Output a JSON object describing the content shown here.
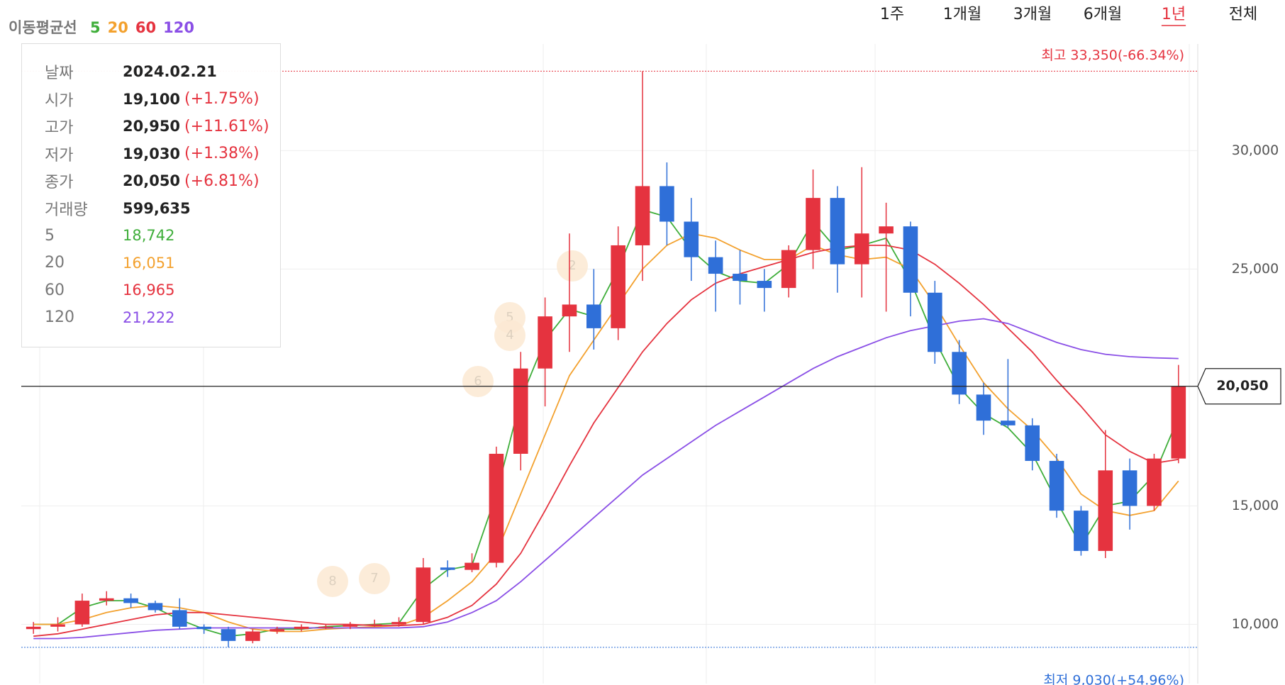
{
  "chart_data": {
    "type": "candlestick",
    "legend_title": "이동평균선",
    "periods": [
      "1주",
      "1개월",
      "3개월",
      "6개월",
      "1년",
      "전체"
    ],
    "selected_period": "1년",
    "colors": {
      "up": "#e5333f",
      "down": "#2f6fd8"
    },
    "ylim": [
      7500,
      34500
    ],
    "yticks": [
      {
        "value": 10000,
        "label": "10,000"
      },
      {
        "value": 15000,
        "label": "15,000"
      },
      {
        "value": 25000,
        "label": "25,000"
      },
      {
        "value": 30000,
        "label": "30,000"
      }
    ],
    "grid": true,
    "open": [
      9800,
      9900,
      10000,
      11000,
      11100,
      10900,
      10600,
      9900,
      9800,
      9300,
      9700,
      9800,
      9900,
      9900,
      10000,
      10000,
      10100,
      12400,
      12300,
      12600,
      17200,
      20800,
      23000,
      23500,
      22500,
      26000,
      28500,
      27000,
      25500,
      24800,
      24500,
      24200,
      25800,
      28000,
      25200,
      26500,
      26800,
      24000,
      21500,
      19700,
      18600,
      18400,
      16900,
      14800,
      13100,
      16500,
      15000,
      17000
    ],
    "high": [
      10100,
      10300,
      11300,
      11400,
      11300,
      11000,
      11100,
      10000,
      9900,
      9800,
      9900,
      10000,
      10000,
      10100,
      10200,
      10300,
      12800,
      12700,
      13000,
      17500,
      21500,
      23800,
      26500,
      25000,
      26800,
      33350,
      29500,
      28000,
      26200,
      25800,
      25000,
      26000,
      29200,
      28500,
      29300,
      27800,
      27000,
      24500,
      22000,
      20200,
      21200,
      18700,
      17200,
      15000,
      18200,
      17000,
      17200,
      20950
    ],
    "low": [
      9600,
      9700,
      9900,
      10800,
      10700,
      10500,
      9800,
      9600,
      9030,
      9200,
      9600,
      9700,
      9800,
      9800,
      9900,
      9900,
      10000,
      12000,
      12200,
      12400,
      16500,
      19200,
      21500,
      21600,
      22000,
      24500,
      26000,
      24500,
      23200,
      23500,
      23200,
      23800,
      25000,
      24000,
      23800,
      23200,
      23000,
      21000,
      19300,
      18000,
      18300,
      16500,
      14500,
      12900,
      12800,
      14000,
      14800,
      16800
    ],
    "close": [
      9900,
      10000,
      11000,
      11100,
      10900,
      10600,
      9900,
      9800,
      9300,
      9700,
      9800,
      9900,
      9900,
      10000,
      10000,
      10100,
      12400,
      12300,
      12600,
      17200,
      20800,
      23000,
      23500,
      22500,
      26000,
      28500,
      27000,
      25500,
      24800,
      24500,
      24200,
      25800,
      28000,
      25200,
      26500,
      26800,
      24000,
      21500,
      19700,
      18600,
      18400,
      16900,
      14800,
      13100,
      16500,
      15000,
      17000,
      20050
    ],
    "series": [
      {
        "name": "5",
        "color": "#3fae3a",
        "values": [
          10000,
          10000,
          10700,
          11000,
          11000,
          10700,
          10200,
          9800,
          9500,
          9600,
          9800,
          9800,
          9900,
          9950,
          10000,
          10050,
          11500,
          12300,
          12500,
          15500,
          19500,
          22000,
          23300,
          23000,
          25000,
          27500,
          27200,
          25800,
          24900,
          24500,
          24400,
          25200,
          27000,
          25800,
          26000,
          26300,
          24500,
          22000,
          20000,
          18900,
          18300,
          17200,
          15200,
          13300,
          15000,
          15200,
          16300,
          18742
        ]
      },
      {
        "name": "20",
        "color": "#f3a12e",
        "values": [
          10000,
          10000,
          10200,
          10500,
          10700,
          10800,
          10700,
          10500,
          10100,
          9800,
          9700,
          9700,
          9800,
          9850,
          9900,
          9950,
          10300,
          11000,
          11800,
          13000,
          15500,
          18000,
          20500,
          22000,
          23500,
          25000,
          26000,
          26500,
          26300,
          25800,
          25400,
          25400,
          26000,
          25600,
          25400,
          25500,
          25000,
          23500,
          21800,
          20200,
          19100,
          18200,
          17000,
          15500,
          14800,
          14600,
          14800,
          16051
        ]
      },
      {
        "name": "60",
        "color": "#e5333f",
        "values": [
          9500,
          9600,
          9800,
          10000,
          10200,
          10400,
          10500,
          10500,
          10400,
          10300,
          10200,
          10100,
          10000,
          10000,
          9950,
          9950,
          10000,
          10300,
          10800,
          11700,
          13000,
          14800,
          16700,
          18500,
          20000,
          21500,
          22700,
          23700,
          24400,
          24800,
          25100,
          25400,
          25700,
          25900,
          26000,
          26000,
          25800,
          25200,
          24400,
          23500,
          22500,
          21500,
          20300,
          19200,
          18000,
          17300,
          16800,
          16965
        ]
      },
      {
        "name": "120",
        "color": "#8a4fe6",
        "values": [
          9400,
          9400,
          9450,
          9550,
          9650,
          9750,
          9800,
          9850,
          9850,
          9850,
          9850,
          9850,
          9850,
          9850,
          9850,
          9850,
          9900,
          10100,
          10500,
          11000,
          11800,
          12700,
          13600,
          14500,
          15400,
          16300,
          17000,
          17700,
          18400,
          19000,
          19600,
          20200,
          20800,
          21300,
          21700,
          22100,
          22400,
          22600,
          22800,
          22900,
          22700,
          22300,
          21900,
          21600,
          21400,
          21300,
          21250,
          21222
        ]
      }
    ],
    "max": {
      "value": 33350,
      "label": "최고 33,350(-66.34%)"
    },
    "min": {
      "value": 9030,
      "label": "최저 9,030(+54.96%)"
    },
    "current": {
      "value": 20050,
      "label": "20,050"
    },
    "markers": [
      "2",
      "5",
      "4",
      "6",
      "8",
      "7"
    ],
    "tooltip": {
      "rows": [
        {
          "label": "날짜",
          "value": "2024.02.21"
        },
        {
          "label": "시가",
          "value": "19,100",
          "change": "(+1.75%)"
        },
        {
          "label": "고가",
          "value": "20,950",
          "change": "(+11.61%)"
        },
        {
          "label": "저가",
          "value": "19,030",
          "change": "(+1.38%)"
        },
        {
          "label": "종가",
          "value": "20,050",
          "change": "(+6.81%)"
        },
        {
          "label": "거래량",
          "value": "599,635"
        }
      ],
      "ma_values": [
        "18,742",
        "16,051",
        "16,965",
        "21,222"
      ]
    }
  }
}
